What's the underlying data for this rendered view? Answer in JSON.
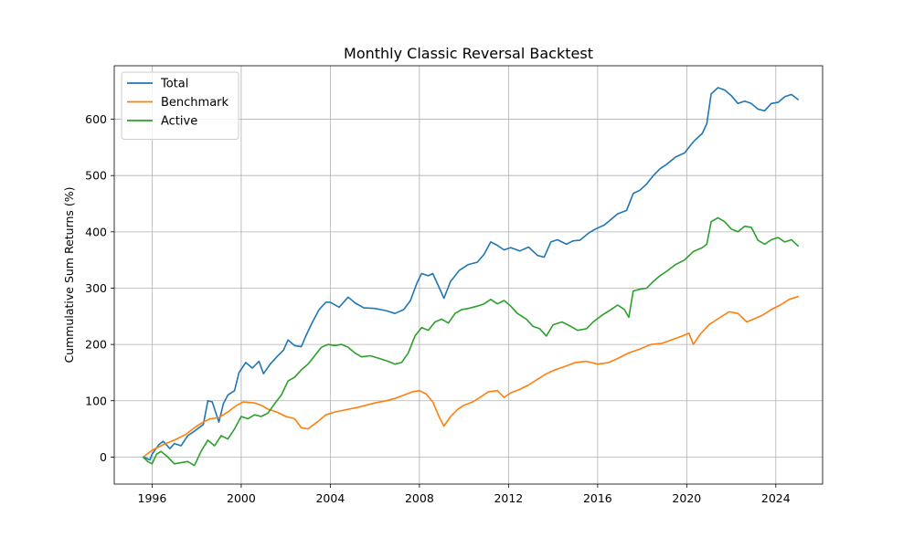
{
  "chart_data": {
    "type": "line",
    "title": "Monthly Classic Reversal Backtest",
    "xlabel": "",
    "ylabel": "Cummulative Sum Returns (%)",
    "xlim": [
      1994.3,
      2026.1
    ],
    "ylim": [
      -48,
      695
    ],
    "xticks": [
      1996,
      2000,
      2004,
      2008,
      2012,
      2016,
      2020,
      2024
    ],
    "yticks": [
      0,
      100,
      200,
      300,
      400,
      500,
      600
    ],
    "grid": true,
    "legend_position": "top-left",
    "series": [
      {
        "name": "Total",
        "color": "#1f77b4",
        "points": [
          [
            1995.6,
            0
          ],
          [
            1995.9,
            -5
          ],
          [
            1996.0,
            5
          ],
          [
            1996.3,
            22
          ],
          [
            1996.5,
            28
          ],
          [
            1996.8,
            15
          ],
          [
            1997.0,
            24
          ],
          [
            1997.3,
            20
          ],
          [
            1997.6,
            38
          ],
          [
            1997.9,
            46
          ],
          [
            1998.1,
            52
          ],
          [
            1998.3,
            58
          ],
          [
            1998.5,
            100
          ],
          [
            1998.7,
            98
          ],
          [
            1999.0,
            62
          ],
          [
            1999.2,
            95
          ],
          [
            1999.4,
            110
          ],
          [
            1999.7,
            118
          ],
          [
            1999.9,
            150
          ],
          [
            2000.2,
            168
          ],
          [
            2000.5,
            158
          ],
          [
            2000.8,
            170
          ],
          [
            2001.0,
            148
          ],
          [
            2001.3,
            165
          ],
          [
            2001.6,
            178
          ],
          [
            2001.9,
            190
          ],
          [
            2002.1,
            208
          ],
          [
            2002.4,
            198
          ],
          [
            2002.7,
            196
          ],
          [
            2002.9,
            215
          ],
          [
            2003.2,
            240
          ],
          [
            2003.5,
            262
          ],
          [
            2003.8,
            275
          ],
          [
            2004.0,
            275
          ],
          [
            2004.4,
            266
          ],
          [
            2004.8,
            284
          ],
          [
            2005.1,
            274
          ],
          [
            2005.5,
            265
          ],
          [
            2006.0,
            264
          ],
          [
            2006.5,
            260
          ],
          [
            2006.9,
            255
          ],
          [
            2007.3,
            262
          ],
          [
            2007.6,
            278
          ],
          [
            2007.9,
            310
          ],
          [
            2008.1,
            326
          ],
          [
            2008.4,
            322
          ],
          [
            2008.6,
            326
          ],
          [
            2008.9,
            300
          ],
          [
            2009.1,
            282
          ],
          [
            2009.4,
            312
          ],
          [
            2009.8,
            332
          ],
          [
            2010.2,
            342
          ],
          [
            2010.6,
            346
          ],
          [
            2010.9,
            360
          ],
          [
            2011.2,
            382
          ],
          [
            2011.5,
            376
          ],
          [
            2011.8,
            368
          ],
          [
            2012.1,
            372
          ],
          [
            2012.5,
            366
          ],
          [
            2012.9,
            373
          ],
          [
            2013.3,
            358
          ],
          [
            2013.6,
            355
          ],
          [
            2013.9,
            382
          ],
          [
            2014.2,
            386
          ],
          [
            2014.6,
            378
          ],
          [
            2014.9,
            384
          ],
          [
            2015.2,
            385
          ],
          [
            2015.6,
            398
          ],
          [
            2015.9,
            405
          ],
          [
            2016.3,
            412
          ],
          [
            2016.6,
            422
          ],
          [
            2016.9,
            432
          ],
          [
            2017.3,
            438
          ],
          [
            2017.6,
            468
          ],
          [
            2017.9,
            474
          ],
          [
            2018.2,
            485
          ],
          [
            2018.5,
            500
          ],
          [
            2018.8,
            512
          ],
          [
            2019.1,
            520
          ],
          [
            2019.5,
            533
          ],
          [
            2019.9,
            540
          ],
          [
            2020.3,
            560
          ],
          [
            2020.7,
            575
          ],
          [
            2020.9,
            592
          ],
          [
            2021.1,
            645
          ],
          [
            2021.4,
            656
          ],
          [
            2021.7,
            652
          ],
          [
            2022.0,
            642
          ],
          [
            2022.3,
            628
          ],
          [
            2022.6,
            632
          ],
          [
            2022.9,
            628
          ],
          [
            2023.2,
            618
          ],
          [
            2023.5,
            615
          ],
          [
            2023.8,
            628
          ],
          [
            2024.1,
            630
          ],
          [
            2024.4,
            640
          ],
          [
            2024.7,
            644
          ],
          [
            2025.0,
            635
          ]
        ]
      },
      {
        "name": "Benchmark",
        "color": "#ff7f0e",
        "points": [
          [
            1995.6,
            0
          ],
          [
            1996.0,
            12
          ],
          [
            1996.5,
            22
          ],
          [
            1997.0,
            30
          ],
          [
            1997.5,
            40
          ],
          [
            1998.0,
            55
          ],
          [
            1998.3,
            62
          ],
          [
            1998.6,
            68
          ],
          [
            1999.0,
            70
          ],
          [
            1999.4,
            80
          ],
          [
            1999.8,
            92
          ],
          [
            2000.1,
            98
          ],
          [
            2000.6,
            96
          ],
          [
            2000.9,
            92
          ],
          [
            2001.2,
            85
          ],
          [
            2001.6,
            80
          ],
          [
            2002.0,
            72
          ],
          [
            2002.4,
            68
          ],
          [
            2002.7,
            52
          ],
          [
            2003.0,
            50
          ],
          [
            2003.4,
            62
          ],
          [
            2003.8,
            75
          ],
          [
            2004.2,
            80
          ],
          [
            2004.7,
            84
          ],
          [
            2005.2,
            88
          ],
          [
            2005.6,
            92
          ],
          [
            2006.0,
            96
          ],
          [
            2006.5,
            100
          ],
          [
            2006.9,
            104
          ],
          [
            2007.3,
            110
          ],
          [
            2007.7,
            116
          ],
          [
            2008.0,
            118
          ],
          [
            2008.3,
            112
          ],
          [
            2008.6,
            98
          ],
          [
            2008.9,
            70
          ],
          [
            2009.1,
            55
          ],
          [
            2009.4,
            72
          ],
          [
            2009.7,
            84
          ],
          [
            2010.0,
            92
          ],
          [
            2010.4,
            98
          ],
          [
            2010.8,
            108
          ],
          [
            2011.1,
            116
          ],
          [
            2011.5,
            118
          ],
          [
            2011.8,
            106
          ],
          [
            2012.1,
            114
          ],
          [
            2012.5,
            120
          ],
          [
            2012.9,
            128
          ],
          [
            2013.3,
            138
          ],
          [
            2013.7,
            148
          ],
          [
            2014.1,
            155
          ],
          [
            2014.6,
            162
          ],
          [
            2015.0,
            168
          ],
          [
            2015.5,
            170
          ],
          [
            2016.0,
            165
          ],
          [
            2016.5,
            168
          ],
          [
            2016.9,
            175
          ],
          [
            2017.4,
            185
          ],
          [
            2017.9,
            192
          ],
          [
            2018.4,
            200
          ],
          [
            2018.9,
            202
          ],
          [
            2019.3,
            208
          ],
          [
            2019.8,
            215
          ],
          [
            2020.1,
            220
          ],
          [
            2020.3,
            200
          ],
          [
            2020.6,
            218
          ],
          [
            2021.0,
            235
          ],
          [
            2021.5,
            248
          ],
          [
            2021.9,
            258
          ],
          [
            2022.3,
            255
          ],
          [
            2022.7,
            240
          ],
          [
            2023.0,
            245
          ],
          [
            2023.4,
            252
          ],
          [
            2023.8,
            262
          ],
          [
            2024.2,
            270
          ],
          [
            2024.6,
            280
          ],
          [
            2025.0,
            285
          ]
        ]
      },
      {
        "name": "Active",
        "color": "#2ca02c",
        "points": [
          [
            1995.6,
            0
          ],
          [
            1995.8,
            -8
          ],
          [
            1996.0,
            -12
          ],
          [
            1996.2,
            5
          ],
          [
            1996.4,
            10
          ],
          [
            1996.7,
            0
          ],
          [
            1997.0,
            -12
          ],
          [
            1997.3,
            -10
          ],
          [
            1997.6,
            -8
          ],
          [
            1997.9,
            -15
          ],
          [
            1998.2,
            10
          ],
          [
            1998.5,
            30
          ],
          [
            1998.8,
            20
          ],
          [
            1999.1,
            38
          ],
          [
            1999.4,
            32
          ],
          [
            1999.7,
            50
          ],
          [
            2000.0,
            72
          ],
          [
            2000.3,
            68
          ],
          [
            2000.6,
            75
          ],
          [
            2000.9,
            72
          ],
          [
            2001.2,
            78
          ],
          [
            2001.5,
            95
          ],
          [
            2001.8,
            110
          ],
          [
            2002.1,
            135
          ],
          [
            2002.4,
            142
          ],
          [
            2002.7,
            155
          ],
          [
            2003.0,
            165
          ],
          [
            2003.3,
            180
          ],
          [
            2003.6,
            195
          ],
          [
            2003.9,
            200
          ],
          [
            2004.2,
            198
          ],
          [
            2004.5,
            200
          ],
          [
            2004.8,
            195
          ],
          [
            2005.1,
            185
          ],
          [
            2005.4,
            178
          ],
          [
            2005.8,
            180
          ],
          [
            2006.2,
            175
          ],
          [
            2006.6,
            170
          ],
          [
            2006.9,
            165
          ],
          [
            2007.2,
            168
          ],
          [
            2007.5,
            185
          ],
          [
            2007.8,
            215
          ],
          [
            2008.1,
            230
          ],
          [
            2008.4,
            225
          ],
          [
            2008.7,
            240
          ],
          [
            2009.0,
            245
          ],
          [
            2009.3,
            238
          ],
          [
            2009.6,
            255
          ],
          [
            2009.9,
            262
          ],
          [
            2010.2,
            264
          ],
          [
            2010.6,
            268
          ],
          [
            2010.9,
            272
          ],
          [
            2011.2,
            280
          ],
          [
            2011.5,
            272
          ],
          [
            2011.8,
            278
          ],
          [
            2012.1,
            268
          ],
          [
            2012.4,
            255
          ],
          [
            2012.8,
            245
          ],
          [
            2013.1,
            232
          ],
          [
            2013.4,
            228
          ],
          [
            2013.7,
            215
          ],
          [
            2014.0,
            235
          ],
          [
            2014.4,
            240
          ],
          [
            2014.8,
            232
          ],
          [
            2015.1,
            225
          ],
          [
            2015.5,
            228
          ],
          [
            2015.8,
            240
          ],
          [
            2016.2,
            252
          ],
          [
            2016.6,
            262
          ],
          [
            2016.9,
            270
          ],
          [
            2017.2,
            262
          ],
          [
            2017.4,
            248
          ],
          [
            2017.6,
            295
          ],
          [
            2017.9,
            298
          ],
          [
            2018.2,
            300
          ],
          [
            2018.5,
            312
          ],
          [
            2018.8,
            322
          ],
          [
            2019.1,
            330
          ],
          [
            2019.5,
            342
          ],
          [
            2019.9,
            350
          ],
          [
            2020.3,
            365
          ],
          [
            2020.7,
            372
          ],
          [
            2020.9,
            378
          ],
          [
            2021.1,
            418
          ],
          [
            2021.4,
            425
          ],
          [
            2021.7,
            418
          ],
          [
            2022.0,
            405
          ],
          [
            2022.3,
            400
          ],
          [
            2022.6,
            410
          ],
          [
            2022.9,
            408
          ],
          [
            2023.2,
            385
          ],
          [
            2023.5,
            378
          ],
          [
            2023.8,
            386
          ],
          [
            2024.1,
            390
          ],
          [
            2024.4,
            382
          ],
          [
            2024.7,
            386
          ],
          [
            2025.0,
            375
          ]
        ]
      }
    ]
  }
}
